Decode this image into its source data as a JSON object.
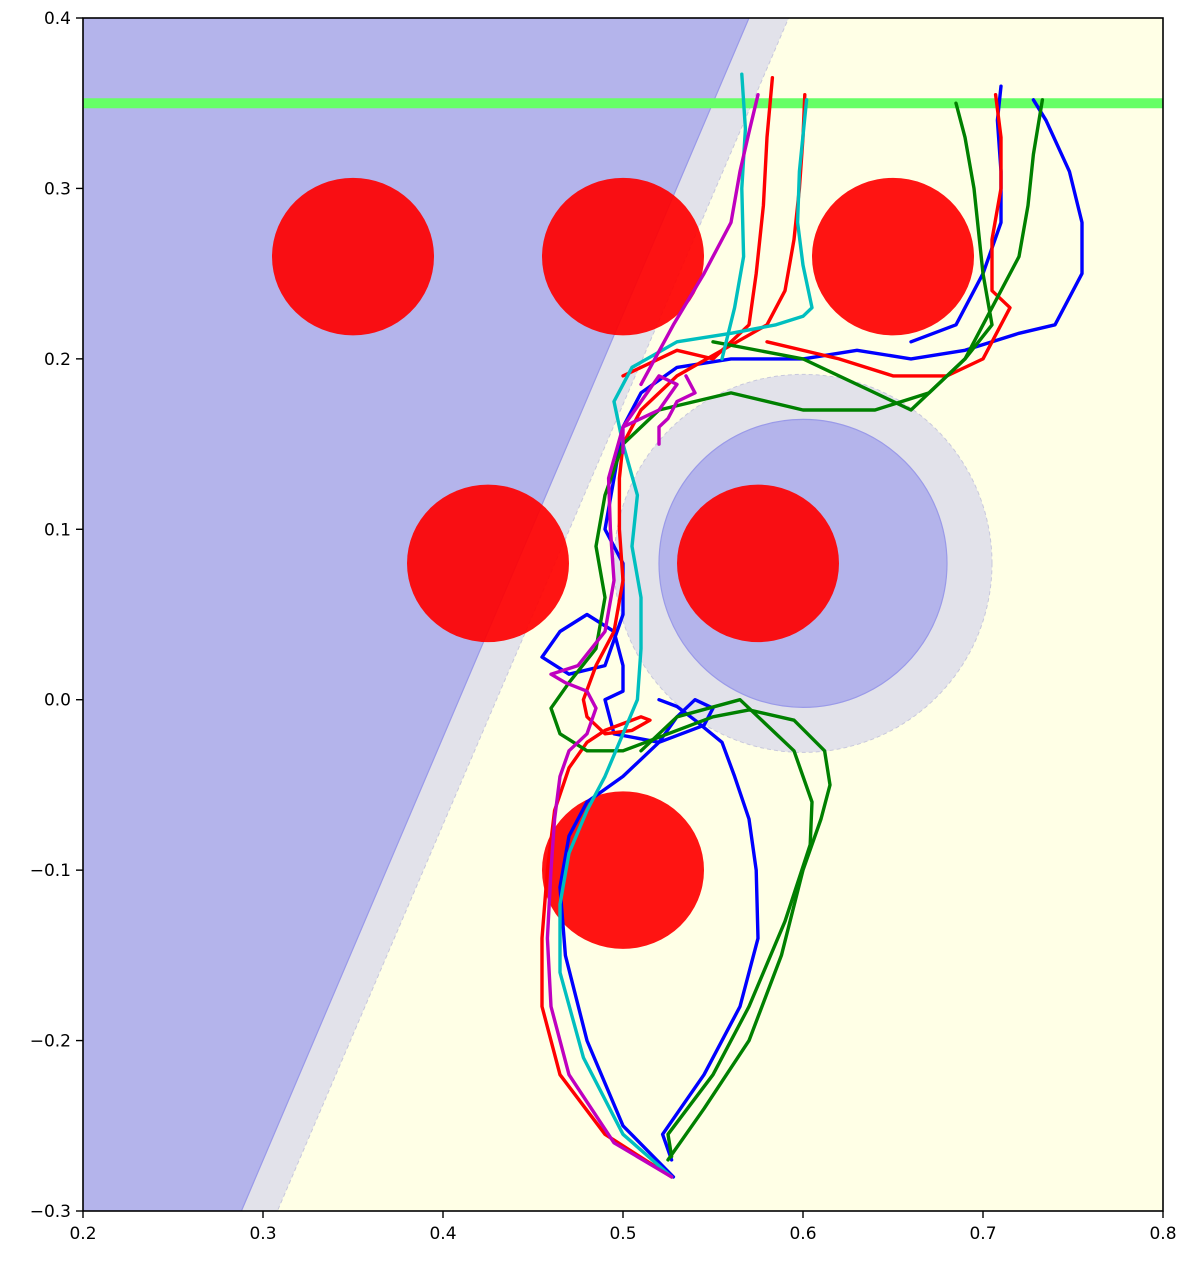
{
  "chart_data": {
    "type": "line",
    "title": "",
    "xlabel": "",
    "ylabel": "",
    "xlim": [
      0.2,
      0.8
    ],
    "ylim": [
      -0.3,
      0.4
    ],
    "grid": false,
    "legend": null,
    "x_ticks": [
      0.2,
      0.3,
      0.4,
      0.5,
      0.6,
      0.7,
      0.8
    ],
    "x_tick_labels": [
      "0.2",
      "0.3",
      "0.4",
      "0.5",
      "0.6",
      "0.7",
      "0.8"
    ],
    "y_ticks": [
      -0.3,
      -0.2,
      -0.1,
      0.0,
      0.1,
      0.2,
      0.3,
      0.4
    ],
    "y_tick_labels": [
      "−0.3",
      "−0.2",
      "−0.1",
      "0.0",
      "0.1",
      "0.2",
      "0.3",
      "0.4"
    ],
    "colors": {
      "background": "#ffffe6",
      "region": "#b4b4eb",
      "margin": "#e2e2ea",
      "goal_line": "#66ff66",
      "target": "#ff0000"
    },
    "regions": {
      "half_plane_boundary": [
        [
          0.288,
          -0.3
        ],
        [
          0.57,
          0.4
        ]
      ],
      "half_plane_margin_boundary": [
        [
          0.308,
          -0.3
        ],
        [
          0.592,
          0.4
        ]
      ],
      "circle": {
        "center": [
          0.6,
          0.08
        ],
        "radius": 0.08,
        "margin_radius": 0.105
      }
    },
    "goal_line_y": 0.35,
    "targets": [
      {
        "x": 0.35,
        "y": 0.26,
        "r": 0.025
      },
      {
        "x": 0.5,
        "y": 0.26,
        "r": 0.025
      },
      {
        "x": 0.65,
        "y": 0.26,
        "r": 0.025
      },
      {
        "x": 0.425,
        "y": 0.08,
        "r": 0.025
      },
      {
        "x": 0.575,
        "y": 0.08,
        "r": 0.025
      },
      {
        "x": 0.5,
        "y": -0.1,
        "r": 0.025
      }
    ],
    "series": [
      {
        "color": "#0000ff",
        "points": [
          [
            0.528,
            -0.28
          ],
          [
            0.5,
            -0.25
          ],
          [
            0.48,
            -0.2
          ],
          [
            0.468,
            -0.15
          ],
          [
            0.465,
            -0.11
          ],
          [
            0.47,
            -0.08
          ],
          [
            0.48,
            -0.06
          ],
          [
            0.5,
            -0.045
          ],
          [
            0.52,
            -0.025
          ],
          [
            0.53,
            -0.01
          ],
          [
            0.54,
            0.0
          ],
          [
            0.55,
            -0.005
          ],
          [
            0.545,
            -0.015
          ],
          [
            0.52,
            -0.025
          ],
          [
            0.495,
            -0.02
          ],
          [
            0.49,
            0.0
          ],
          [
            0.5,
            0.005
          ],
          [
            0.5,
            0.02
          ],
          [
            0.495,
            0.04
          ],
          [
            0.48,
            0.05
          ],
          [
            0.465,
            0.04
          ],
          [
            0.455,
            0.025
          ],
          [
            0.47,
            0.015
          ],
          [
            0.49,
            0.02
          ],
          [
            0.5,
            0.05
          ],
          [
            0.5,
            0.08
          ],
          [
            0.49,
            0.1
          ],
          [
            0.495,
            0.13
          ],
          [
            0.5,
            0.16
          ],
          [
            0.51,
            0.18
          ],
          [
            0.53,
            0.195
          ],
          [
            0.56,
            0.2
          ],
          [
            0.6,
            0.2
          ],
          [
            0.63,
            0.205
          ],
          [
            0.66,
            0.2
          ],
          [
            0.69,
            0.205
          ],
          [
            0.72,
            0.215
          ],
          [
            0.74,
            0.22
          ],
          [
            0.755,
            0.25
          ],
          [
            0.755,
            0.28
          ],
          [
            0.748,
            0.31
          ],
          [
            0.735,
            0.34
          ],
          [
            0.728,
            0.352
          ]
        ]
      },
      {
        "color": "#0000ff",
        "points": [
          [
            0.527,
            -0.27
          ],
          [
            0.522,
            -0.255
          ],
          [
            0.545,
            -0.22
          ],
          [
            0.565,
            -0.18
          ],
          [
            0.575,
            -0.14
          ],
          [
            0.574,
            -0.1
          ],
          [
            0.57,
            -0.07
          ],
          [
            0.562,
            -0.045
          ],
          [
            0.555,
            -0.025
          ],
          [
            0.54,
            -0.012
          ],
          [
            0.53,
            -0.004
          ],
          [
            0.52,
            0.0
          ]
        ]
      },
      {
        "color": "#0000ff",
        "points": [
          [
            0.66,
            0.21
          ],
          [
            0.685,
            0.22
          ],
          [
            0.7,
            0.25
          ],
          [
            0.71,
            0.28
          ],
          [
            0.71,
            0.31
          ],
          [
            0.708,
            0.34
          ],
          [
            0.71,
            0.36
          ]
        ]
      },
      {
        "color": "#ff0000",
        "points": [
          [
            0.527,
            -0.28
          ],
          [
            0.49,
            -0.255
          ],
          [
            0.465,
            -0.22
          ],
          [
            0.455,
            -0.18
          ],
          [
            0.455,
            -0.14
          ],
          [
            0.458,
            -0.1
          ],
          [
            0.462,
            -0.065
          ],
          [
            0.47,
            -0.04
          ],
          [
            0.48,
            -0.025
          ],
          [
            0.49,
            -0.018
          ],
          [
            0.5,
            -0.014
          ],
          [
            0.51,
            -0.01
          ],
          [
            0.515,
            -0.012
          ],
          [
            0.505,
            -0.018
          ],
          [
            0.49,
            -0.02
          ],
          [
            0.48,
            -0.01
          ],
          [
            0.478,
            0.0
          ],
          [
            0.485,
            0.02
          ],
          [
            0.495,
            0.04
          ],
          [
            0.5,
            0.07
          ],
          [
            0.498,
            0.1
          ],
          [
            0.498,
            0.13
          ],
          [
            0.5,
            0.15
          ],
          [
            0.51,
            0.17
          ],
          [
            0.53,
            0.19
          ],
          [
            0.555,
            0.205
          ],
          [
            0.58,
            0.22
          ],
          [
            0.59,
            0.24
          ],
          [
            0.595,
            0.27
          ],
          [
            0.598,
            0.3
          ],
          [
            0.6,
            0.33
          ],
          [
            0.601,
            0.355
          ]
        ]
      },
      {
        "color": "#ff0000",
        "points": [
          [
            0.58,
            0.21
          ],
          [
            0.62,
            0.2
          ],
          [
            0.65,
            0.19
          ],
          [
            0.68,
            0.19
          ],
          [
            0.7,
            0.2
          ],
          [
            0.715,
            0.23
          ],
          [
            0.705,
            0.24
          ],
          [
            0.705,
            0.27
          ],
          [
            0.71,
            0.3
          ],
          [
            0.71,
            0.33
          ],
          [
            0.707,
            0.355
          ]
        ]
      },
      {
        "color": "#ff0000",
        "points": [
          [
            0.5,
            0.19
          ],
          [
            0.53,
            0.205
          ],
          [
            0.55,
            0.2
          ],
          [
            0.57,
            0.22
          ],
          [
            0.574,
            0.25
          ],
          [
            0.578,
            0.29
          ],
          [
            0.58,
            0.33
          ],
          [
            0.583,
            0.365
          ]
        ]
      },
      {
        "color": "#008000",
        "points": [
          [
            0.525,
            -0.27
          ],
          [
            0.545,
            -0.24
          ],
          [
            0.57,
            -0.2
          ],
          [
            0.588,
            -0.15
          ],
          [
            0.6,
            -0.1
          ],
          [
            0.61,
            -0.07
          ],
          [
            0.615,
            -0.05
          ],
          [
            0.612,
            -0.03
          ],
          [
            0.595,
            -0.012
          ],
          [
            0.57,
            -0.006
          ],
          [
            0.55,
            -0.01
          ],
          [
            0.525,
            -0.02
          ],
          [
            0.5,
            -0.03
          ],
          [
            0.48,
            -0.03
          ],
          [
            0.465,
            -0.02
          ],
          [
            0.46,
            -0.005
          ],
          [
            0.47,
            0.01
          ],
          [
            0.485,
            0.03
          ],
          [
            0.49,
            0.06
          ],
          [
            0.485,
            0.09
          ],
          [
            0.49,
            0.12
          ],
          [
            0.5,
            0.15
          ],
          [
            0.52,
            0.17
          ],
          [
            0.56,
            0.18
          ],
          [
            0.6,
            0.17
          ],
          [
            0.64,
            0.17
          ],
          [
            0.67,
            0.18
          ],
          [
            0.69,
            0.2
          ],
          [
            0.705,
            0.23
          ],
          [
            0.72,
            0.26
          ],
          [
            0.725,
            0.29
          ],
          [
            0.728,
            0.32
          ],
          [
            0.733,
            0.352
          ]
        ]
      },
      {
        "color": "#008000",
        "points": [
          [
            0.527,
            -0.268
          ],
          [
            0.525,
            -0.255
          ],
          [
            0.55,
            -0.22
          ],
          [
            0.57,
            -0.18
          ],
          [
            0.59,
            -0.13
          ],
          [
            0.604,
            -0.085
          ],
          [
            0.605,
            -0.06
          ],
          [
            0.595,
            -0.03
          ],
          [
            0.565,
            0.0
          ],
          [
            0.53,
            -0.01
          ],
          [
            0.51,
            -0.03
          ]
        ]
      },
      {
        "color": "#008000",
        "points": [
          [
            0.55,
            0.21
          ],
          [
            0.6,
            0.2
          ],
          [
            0.64,
            0.18
          ],
          [
            0.66,
            0.17
          ],
          [
            0.69,
            0.2
          ],
          [
            0.705,
            0.22
          ],
          [
            0.7,
            0.25
          ],
          [
            0.695,
            0.3
          ],
          [
            0.69,
            0.33
          ],
          [
            0.685,
            0.35
          ]
        ]
      },
      {
        "color": "#00bfbf",
        "points": [
          [
            0.527,
            -0.28
          ],
          [
            0.5,
            -0.255
          ],
          [
            0.478,
            -0.21
          ],
          [
            0.465,
            -0.16
          ],
          [
            0.465,
            -0.12
          ],
          [
            0.47,
            -0.09
          ],
          [
            0.48,
            -0.065
          ],
          [
            0.49,
            -0.045
          ],
          [
            0.5,
            -0.02
          ],
          [
            0.508,
            0.0
          ],
          [
            0.51,
            0.03
          ],
          [
            0.51,
            0.06
          ],
          [
            0.505,
            0.09
          ],
          [
            0.508,
            0.12
          ],
          [
            0.5,
            0.15
          ],
          [
            0.495,
            0.175
          ],
          [
            0.505,
            0.195
          ],
          [
            0.53,
            0.21
          ],
          [
            0.56,
            0.215
          ],
          [
            0.585,
            0.22
          ],
          [
            0.6,
            0.225
          ],
          [
            0.605,
            0.23
          ],
          [
            0.6,
            0.255
          ],
          [
            0.597,
            0.28
          ],
          [
            0.598,
            0.31
          ],
          [
            0.602,
            0.352
          ]
        ]
      },
      {
        "color": "#00bfbf",
        "points": [
          [
            0.555,
            0.2
          ],
          [
            0.562,
            0.23
          ],
          [
            0.567,
            0.26
          ],
          [
            0.566,
            0.3
          ],
          [
            0.568,
            0.335
          ],
          [
            0.566,
            0.367
          ]
        ]
      },
      {
        "color": "#bf00bf",
        "points": [
          [
            0.527,
            -0.28
          ],
          [
            0.495,
            -0.26
          ],
          [
            0.47,
            -0.22
          ],
          [
            0.46,
            -0.18
          ],
          [
            0.458,
            -0.14
          ],
          [
            0.46,
            -0.1
          ],
          [
            0.462,
            -0.07
          ],
          [
            0.465,
            -0.045
          ],
          [
            0.47,
            -0.03
          ],
          [
            0.48,
            -0.02
          ],
          [
            0.485,
            -0.005
          ],
          [
            0.48,
            0.005
          ],
          [
            0.468,
            0.01
          ],
          [
            0.46,
            0.015
          ],
          [
            0.475,
            0.02
          ],
          [
            0.49,
            0.04
          ],
          [
            0.495,
            0.07
          ],
          [
            0.493,
            0.1
          ],
          [
            0.492,
            0.13
          ],
          [
            0.5,
            0.16
          ],
          [
            0.52,
            0.17
          ],
          [
            0.53,
            0.185
          ],
          [
            0.52,
            0.19
          ],
          [
            0.51,
            0.175
          ],
          [
            0.5,
            0.16
          ],
          [
            0.5,
            0.145
          ]
        ]
      },
      {
        "color": "#bf00bf",
        "points": [
          [
            0.51,
            0.185
          ],
          [
            0.528,
            0.22
          ],
          [
            0.545,
            0.25
          ],
          [
            0.56,
            0.28
          ],
          [
            0.565,
            0.31
          ],
          [
            0.57,
            0.333
          ],
          [
            0.575,
            0.355
          ]
        ]
      },
      {
        "color": "#bf00bf",
        "points": [
          [
            0.52,
            0.15
          ],
          [
            0.52,
            0.16
          ],
          [
            0.525,
            0.165
          ],
          [
            0.53,
            0.175
          ],
          [
            0.54,
            0.18
          ],
          [
            0.535,
            0.19
          ]
        ]
      }
    ]
  }
}
